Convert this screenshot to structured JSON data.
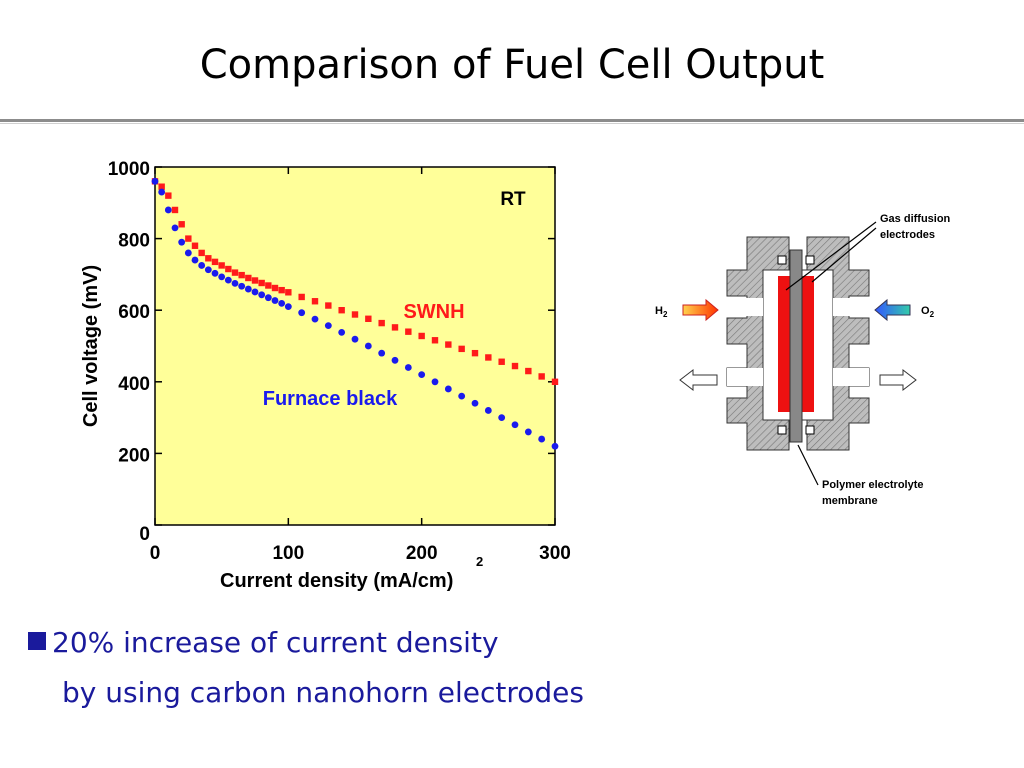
{
  "slide": {
    "title": "Comparison of Fuel Cell Output",
    "bullet_line1": "20% increase of current density",
    "bullet_line2": "by using carbon nanohorn electrodes"
  },
  "colors": {
    "plot_bg": "#ffff99",
    "swnh": "#ff1a1a",
    "furnace": "#1a1aee",
    "bullet_text": "#1a1a9c"
  },
  "chart_data": {
    "type": "scatter",
    "xlabel": "Current density (mA/cm",
    "xlabel_sup": "2",
    "xlabel_close": ")",
    "ylabel": "Cell voltage (mV)",
    "xlim": [
      0,
      300
    ],
    "ylim": [
      0,
      1000
    ],
    "xticks": [
      0,
      100,
      200,
      300
    ],
    "yticks": [
      0,
      200,
      400,
      600,
      800,
      1000
    ],
    "annotation": "RT",
    "grid": false,
    "series": [
      {
        "name": "SWNH",
        "color": "#ff1a1a",
        "marker": "square",
        "x": [
          0,
          5,
          10,
          15,
          20,
          25,
          30,
          35,
          40,
          45,
          50,
          55,
          60,
          65,
          70,
          75,
          80,
          85,
          90,
          95,
          100,
          110,
          120,
          130,
          140,
          150,
          160,
          170,
          180,
          190,
          200,
          210,
          220,
          230,
          240,
          250,
          260,
          270,
          280,
          290,
          300
        ],
        "y": [
          960,
          945,
          920,
          880,
          840,
          800,
          780,
          760,
          745,
          735,
          725,
          715,
          705,
          698,
          690,
          683,
          676,
          669,
          662,
          656,
          650,
          637,
          625,
          613,
          600,
          588,
          576,
          564,
          552,
          540,
          528,
          516,
          504,
          492,
          480,
          468,
          456,
          444,
          430,
          415,
          400
        ]
      },
      {
        "name": "Furnace black",
        "color": "#1a1aee",
        "marker": "circle",
        "x": [
          0,
          5,
          10,
          15,
          20,
          25,
          30,
          35,
          40,
          45,
          50,
          55,
          60,
          65,
          70,
          75,
          80,
          85,
          90,
          95,
          100,
          110,
          120,
          130,
          140,
          150,
          160,
          170,
          180,
          190,
          200,
          210,
          220,
          230,
          240,
          250,
          260,
          270,
          280,
          290,
          300
        ],
        "y": [
          960,
          930,
          880,
          830,
          790,
          760,
          740,
          725,
          713,
          703,
          693,
          684,
          675,
          667,
          659,
          651,
          643,
          635,
          627,
          619,
          610,
          593,
          575,
          557,
          538,
          519,
          500,
          480,
          460,
          440,
          420,
          400,
          380,
          360,
          340,
          320,
          300,
          280,
          260,
          240,
          220
        ]
      }
    ]
  },
  "diagram": {
    "label_gas": "Gas diffusion",
    "label_gas2": "electrodes",
    "label_membrane": "Polymer electrolyte",
    "label_membrane2": "membrane",
    "label_h": "H",
    "label_h_sub": "2",
    "label_o": "O",
    "label_o_sub": "2"
  }
}
